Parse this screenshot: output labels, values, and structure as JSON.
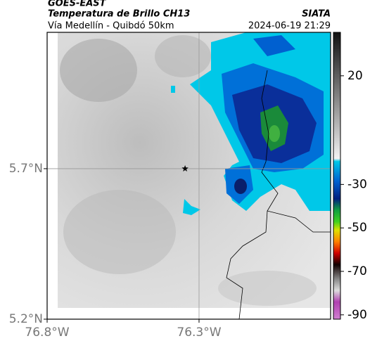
{
  "header": {
    "satellite": "GOES-EAST",
    "product": "Temperatura de Brillo CH13",
    "region": "Vía Medellín - Quibdó 50km",
    "source": "SIATA",
    "datetime": "2024-06-19 21:29"
  },
  "map": {
    "xlim": [
      -76.8,
      -75.867
    ],
    "ylim": [
      5.2,
      6.153
    ],
    "xticks": [
      {
        "value": -76.8,
        "label": "76.8°W"
      },
      {
        "value": -76.3,
        "label": "76.3°W"
      }
    ],
    "yticks": [
      {
        "value": 5.2,
        "label": "5.2°N"
      },
      {
        "value": 5.7,
        "label": "5.7°N"
      }
    ],
    "grid_lines": {
      "lon": -76.3,
      "lat": 5.7
    },
    "marker": {
      "lon": -76.346,
      "lat": 5.7
    }
  },
  "colorbar": {
    "lim": [
      -92,
      40
    ],
    "ticks": [
      20,
      -30,
      -50,
      -70,
      -90
    ]
  }
}
